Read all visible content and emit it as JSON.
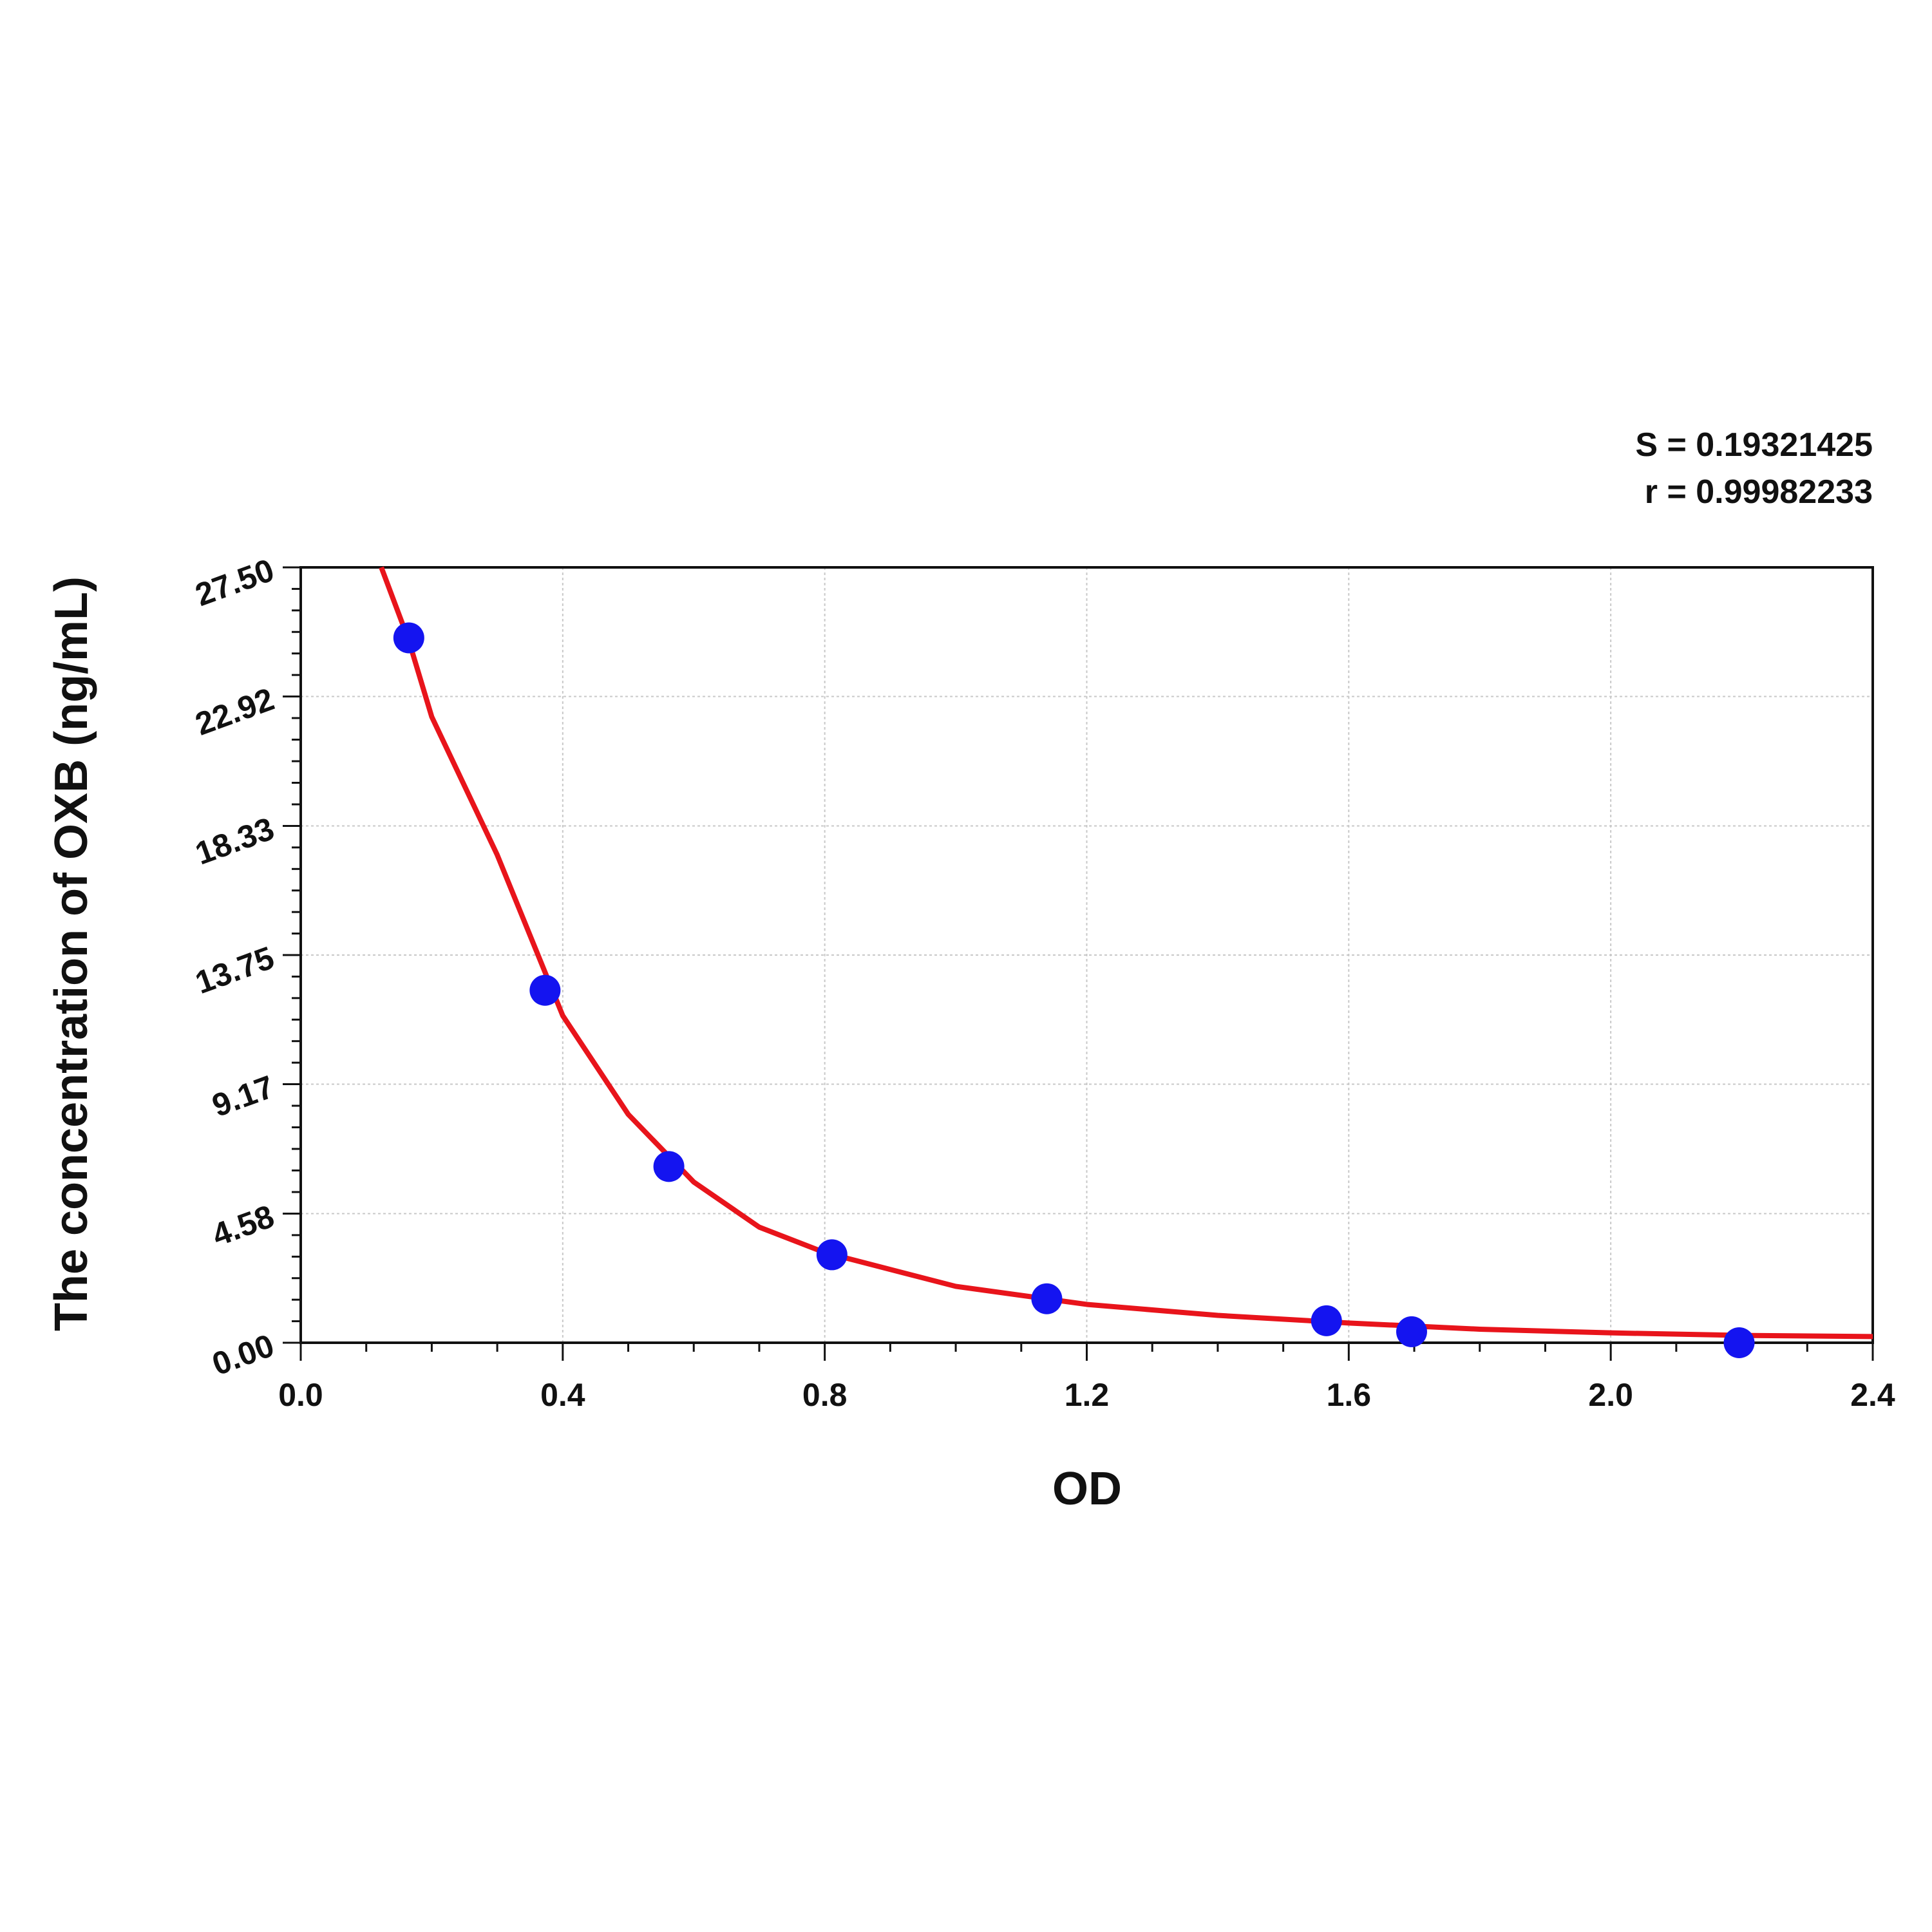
{
  "chart_data": {
    "type": "scatter",
    "annotations": [
      "S = 0.19321425",
      "r = 0.99982233"
    ],
    "x_label": "OD",
    "y_label": "The concentration of OXB (ng/mL)",
    "xlim": [
      0,
      2.4
    ],
    "ylim": [
      0,
      27.5
    ],
    "xticks": [
      {
        "value": 0,
        "label": "0.0"
      },
      0.4,
      0.8,
      1.2,
      1.6,
      {
        "value": 2,
        "label": "2.0"
      },
      2.4
    ],
    "yticks": [
      {
        "value": 0,
        "label": "0.00"
      },
      4.58,
      9.17,
      13.75,
      18.33,
      22.92,
      {
        "value": 27.5,
        "label": "27.50"
      }
    ],
    "grid": true,
    "series": [
      {
        "type": "scatter",
        "color": "#1414f0",
        "x": [
          0.165,
          0.373,
          0.562,
          0.811,
          1.139,
          1.566,
          1.696,
          2.196
        ],
        "values": [
          25,
          12.5,
          6.25,
          3.12,
          1.56,
          0.78,
          0.39,
          0
        ]
      },
      {
        "type": "line",
        "color": "#e8141b",
        "x": [
          0.123,
          0.165,
          0.2,
          0.3,
          0.4,
          0.5,
          0.6,
          0.7,
          0.8,
          1.0,
          1.2,
          1.4,
          1.6,
          1.8,
          2.0,
          2.2,
          2.4
        ],
        "values": [
          27.5,
          24.9,
          22.2,
          17.3,
          11.6,
          8.1,
          5.7,
          4.1,
          3.2,
          2.0,
          1.36,
          0.97,
          0.7,
          0.48,
          0.35,
          0.26,
          0.22
        ]
      }
    ]
  }
}
